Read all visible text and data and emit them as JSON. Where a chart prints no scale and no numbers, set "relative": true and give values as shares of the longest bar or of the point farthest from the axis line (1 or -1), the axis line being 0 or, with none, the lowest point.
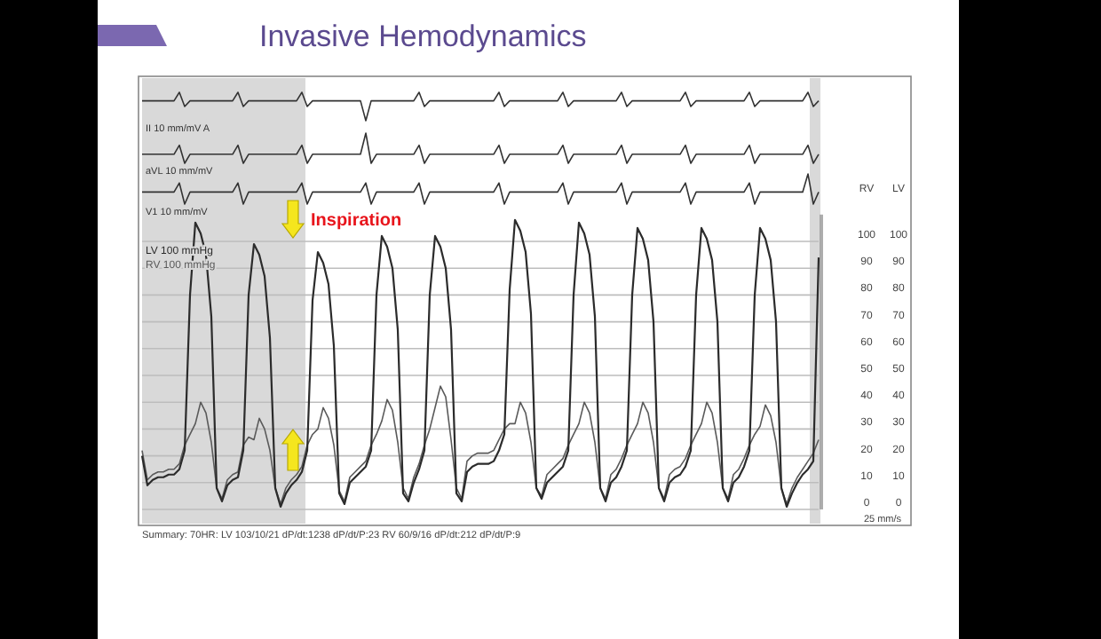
{
  "chart_data": [
    {
      "type": "line",
      "title": "Invasive Hemodynamics",
      "relative": true,
      "categories": [
        null,
        null,
        null,
        null,
        null,
        null,
        null,
        null,
        null,
        null,
        null,
        null,
        null,
        null,
        null,
        null,
        null,
        null,
        null,
        null,
        null,
        null,
        null,
        null,
        null,
        null,
        null,
        null,
        null,
        null,
        null,
        null,
        null,
        null,
        null,
        null,
        null,
        null,
        null,
        null,
        null,
        null,
        null,
        null,
        null,
        null,
        null,
        null,
        null,
        null,
        null,
        null,
        null,
        null,
        null,
        null,
        null,
        null,
        null,
        null,
        null,
        null,
        null,
        null,
        null,
        null,
        null,
        null,
        null,
        null,
        null,
        null,
        null,
        null,
        null,
        null,
        null,
        null,
        null,
        null,
        null,
        null,
        null,
        null,
        null,
        null,
        null,
        null,
        null,
        null,
        null,
        null,
        null,
        null,
        null,
        null,
        null,
        null,
        null,
        null,
        null,
        null,
        null,
        null,
        null,
        null,
        null,
        null,
        null,
        null,
        null,
        null,
        null,
        null,
        null,
        null,
        null,
        null,
        null,
        null,
        null,
        null,
        null,
        null,
        null,
        null,
        null,
        null
      ],
      "series": [
        {
          "name": "II 10 mm/mV A",
          "color": "#333333",
          "values": [
            0.7,
            0.7,
            0.7,
            0.7,
            0.7,
            0.7,
            0.7,
            1,
            0.5,
            0.7,
            0.7,
            0.7,
            0.7,
            0.7,
            0.7,
            0.7,
            0.7,
            0.7,
            1,
            0.5,
            0.7,
            0.7,
            0.7,
            0.7,
            0.7,
            0.7,
            0.7,
            0.7,
            0.7,
            0.7,
            1,
            0.5,
            0.7,
            0.7,
            0.7,
            0.7,
            0.7,
            0.7,
            0.7,
            0.7,
            0.7,
            0.7,
            0,
            0.7,
            0.7,
            0.7,
            0.7,
            0.7,
            0.7,
            0.7,
            0.7,
            0.7,
            1,
            0.5,
            0.7,
            0.7,
            0.7,
            0.7,
            0.7,
            0.7,
            0.7,
            0.7,
            0.7,
            0.7,
            0.7,
            0.7,
            0.7,
            1,
            0.5,
            0.7,
            0.7,
            0.7,
            0.7,
            0.7,
            0.7,
            0.7,
            0.7,
            0.7,
            0.7,
            1,
            0.5,
            0.7,
            0.7,
            0.7,
            0.7,
            0.7,
            0.7,
            0.7,
            0.7,
            0.7,
            1,
            0.5,
            0.7,
            0.7,
            0.7,
            0.7,
            0.7,
            0.7,
            0.7,
            0.7,
            0.7,
            0.7,
            1,
            0.5,
            0.7,
            0.7,
            0.7,
            0.7,
            0.7,
            0.7,
            0.7,
            0.7,
            0.7,
            0.7,
            1,
            0.5,
            0.7,
            0.7,
            0.7,
            0.7,
            0.7,
            0.7,
            0.7,
            0.7,
            0.7,
            1,
            0.5,
            0.7
          ]
        }
      ]
    },
    {
      "type": "line",
      "relative": true,
      "categories": [
        null,
        null,
        null,
        null,
        null,
        null,
        null,
        null,
        null,
        null,
        null,
        null,
        null,
        null,
        null,
        null,
        null,
        null,
        null,
        null,
        null,
        null,
        null,
        null,
        null,
        null,
        null,
        null,
        null,
        null,
        null,
        null,
        null,
        null,
        null,
        null,
        null,
        null,
        null,
        null,
        null,
        null,
        null,
        null,
        null,
        null,
        null,
        null,
        null,
        null,
        null,
        null,
        null,
        null,
        null,
        null,
        null,
        null,
        null,
        null,
        null,
        null,
        null,
        null,
        null,
        null,
        null,
        null,
        null,
        null,
        null,
        null,
        null,
        null,
        null,
        null,
        null,
        null,
        null,
        null,
        null,
        null,
        null,
        null,
        null,
        null,
        null,
        null,
        null,
        null,
        null,
        null,
        null,
        null,
        null,
        null,
        null,
        null,
        null,
        null,
        null,
        null,
        null,
        null,
        null,
        null,
        null,
        null,
        null,
        null,
        null,
        null,
        null,
        null,
        null,
        null,
        null,
        null,
        null,
        null,
        null,
        null,
        null,
        null,
        null,
        null,
        null,
        null
      ],
      "series": [
        {
          "name": "aVL 10 mm/mV",
          "color": "#333333",
          "values": [
            0.3,
            0.3,
            0.3,
            0.3,
            0.3,
            0.3,
            0.3,
            0.6,
            0,
            0.3,
            0.3,
            0.3,
            0.3,
            0.3,
            0.3,
            0.3,
            0.3,
            0.3,
            0.6,
            0,
            0.3,
            0.3,
            0.3,
            0.3,
            0.3,
            0.3,
            0.3,
            0.3,
            0.3,
            0.3,
            0.6,
            0,
            0.3,
            0.3,
            0.3,
            0.3,
            0.3,
            0.3,
            0.3,
            0.3,
            0.3,
            0.3,
            1,
            0,
            0.3,
            0.3,
            0.3,
            0.3,
            0.3,
            0.3,
            0.3,
            0.3,
            0.6,
            0,
            0.3,
            0.3,
            0.3,
            0.3,
            0.3,
            0.3,
            0.3,
            0.3,
            0.3,
            0.3,
            0.3,
            0.3,
            0.3,
            0.6,
            0,
            0.3,
            0.3,
            0.3,
            0.3,
            0.3,
            0.3,
            0.3,
            0.3,
            0.3,
            0.3,
            0.6,
            0,
            0.3,
            0.3,
            0.3,
            0.3,
            0.3,
            0.3,
            0.3,
            0.3,
            0.3,
            0.6,
            0,
            0.3,
            0.3,
            0.3,
            0.3,
            0.3,
            0.3,
            0.3,
            0.3,
            0.3,
            0.3,
            0.6,
            0,
            0.3,
            0.3,
            0.3,
            0.3,
            0.3,
            0.3,
            0.3,
            0.3,
            0.3,
            0.3,
            0.6,
            0,
            0.3,
            0.3,
            0.3,
            0.3,
            0.3,
            0.3,
            0.3,
            0.3,
            0.3,
            0.6,
            0,
            0.3
          ]
        }
      ]
    },
    {
      "type": "line",
      "relative": true,
      "categories": [
        null,
        null,
        null,
        null,
        null,
        null,
        null,
        null,
        null,
        null,
        null,
        null,
        null,
        null,
        null,
        null,
        null,
        null,
        null,
        null,
        null,
        null,
        null,
        null,
        null,
        null,
        null,
        null,
        null,
        null,
        null,
        null,
        null,
        null,
        null,
        null,
        null,
        null,
        null,
        null,
        null,
        null,
        null,
        null,
        null,
        null,
        null,
        null,
        null,
        null,
        null,
        null,
        null,
        null,
        null,
        null,
        null,
        null,
        null,
        null,
        null,
        null,
        null,
        null,
        null,
        null,
        null,
        null,
        null,
        null,
        null,
        null,
        null,
        null,
        null,
        null,
        null,
        null,
        null,
        null,
        null,
        null,
        null,
        null,
        null,
        null,
        null,
        null,
        null,
        null,
        null,
        null,
        null,
        null,
        null,
        null,
        null,
        null,
        null,
        null,
        null,
        null,
        null,
        null,
        null,
        null,
        null,
        null,
        null,
        null,
        null,
        null,
        null,
        null,
        null,
        null,
        null,
        null,
        null,
        null,
        null,
        null,
        null,
        null,
        null,
        null,
        null,
        null
      ],
      "series": [
        {
          "name": "V1 10 mm/mV",
          "color": "#333333",
          "values": [
            0.4,
            0.4,
            0.4,
            0.4,
            0.4,
            0.4,
            0.4,
            0.7,
            0,
            0.4,
            0.4,
            0.4,
            0.4,
            0.4,
            0.4,
            0.4,
            0.4,
            0.4,
            0.7,
            0,
            0.4,
            0.4,
            0.4,
            0.4,
            0.4,
            0.4,
            0.4,
            0.4,
            0.4,
            0.4,
            0.7,
            0,
            0.4,
            0.4,
            0.4,
            0.4,
            0.4,
            0.4,
            0.4,
            0.4,
            0.4,
            0.4,
            0.7,
            0,
            0.4,
            0.4,
            0.4,
            0.4,
            0.4,
            0.4,
            0.4,
            0.4,
            0.7,
            0,
            0.4,
            0.4,
            0.4,
            0.4,
            0.4,
            0.4,
            0.4,
            0.4,
            0.4,
            0.4,
            0.4,
            0.4,
            0.4,
            0.7,
            0,
            0.4,
            0.4,
            0.4,
            0.4,
            0.4,
            0.4,
            0.4,
            0.4,
            0.4,
            0.4,
            0.7,
            0,
            0.4,
            0.4,
            0.4,
            0.4,
            0.4,
            0.4,
            0.4,
            0.4,
            0.4,
            0.7,
            0,
            0.4,
            0.4,
            0.4,
            0.4,
            0.4,
            0.4,
            0.4,
            0.4,
            0.4,
            0.4,
            0.7,
            0,
            0.4,
            0.4,
            0.4,
            0.4,
            0.4,
            0.4,
            0.4,
            0.4,
            0.4,
            0.4,
            0.7,
            0,
            0.4,
            0.4,
            0.4,
            0.4,
            0.4,
            0.4,
            0.4,
            0.4,
            0.4,
            1,
            0,
            0.4
          ]
        }
      ]
    },
    {
      "type": "line",
      "ylabel": "RV",
      "y2label": "LV",
      "grid": "y",
      "ylim": [
        0,
        110
      ],
      "yticks": [
        0,
        10,
        20,
        30,
        40,
        50,
        60,
        70,
        80,
        90,
        100
      ],
      "y2lim": [
        0,
        110
      ],
      "y2ticks": [
        0,
        10,
        20,
        30,
        40,
        50,
        60,
        70,
        80,
        90,
        100
      ],
      "categories": [
        null,
        null,
        null,
        null,
        null,
        null,
        null,
        null,
        null,
        null,
        null,
        null,
        null,
        null,
        null,
        null,
        null,
        null,
        null,
        null,
        null,
        null,
        null,
        null,
        null,
        null,
        null,
        null,
        null,
        null,
        null,
        null,
        null,
        null,
        null,
        null,
        null,
        null,
        null,
        null,
        null,
        null,
        null,
        null,
        null,
        null,
        null,
        null,
        null,
        null,
        null,
        null,
        null,
        null,
        null,
        null,
        null,
        null,
        null,
        null,
        null,
        null,
        null,
        null,
        null,
        null,
        null,
        null,
        null,
        null,
        null,
        null,
        null,
        null,
        null,
        null,
        null,
        null,
        null,
        null,
        null,
        null,
        null,
        null,
        null,
        null,
        null,
        null,
        null,
        null,
        null,
        null,
        null,
        null,
        null,
        null,
        null,
        null,
        null,
        null,
        null,
        null,
        null,
        null,
        null,
        null,
        null,
        null,
        null,
        null,
        null,
        null,
        null,
        null,
        null,
        null,
        null,
        null,
        null,
        null,
        null,
        null,
        null,
        null,
        null,
        null,
        null,
        null
      ],
      "series": [
        {
          "name": "LV 100 mmHg",
          "color": "#2b2b2b",
          "axis": "y2",
          "values": [
            20,
            9,
            11,
            12,
            12,
            13,
            13,
            15,
            22,
            80,
            107,
            103,
            95,
            72,
            8,
            3,
            9,
            11,
            12,
            22,
            80,
            99,
            95,
            87,
            64,
            8,
            1,
            6,
            9,
            11,
            14,
            22,
            78,
            96,
            92,
            84,
            61,
            6,
            2,
            10,
            12,
            14,
            16,
            22,
            80,
            102,
            98,
            90,
            67,
            6,
            3,
            10,
            15,
            22,
            80,
            102,
            98,
            90,
            67,
            6,
            3,
            14,
            16,
            17,
            17,
            17,
            18,
            22,
            28,
            82,
            108,
            104,
            96,
            73,
            8,
            4,
            10,
            12,
            14,
            16,
            22,
            80,
            107,
            103,
            95,
            72,
            8,
            3,
            10,
            12,
            16,
            22,
            80,
            105,
            101,
            93,
            70,
            8,
            3,
            10,
            12,
            13,
            16,
            22,
            80,
            105,
            101,
            93,
            70,
            8,
            3,
            10,
            12,
            16,
            22,
            80,
            105,
            101,
            93,
            70,
            8,
            1,
            6,
            10,
            13,
            15,
            18,
            94
          ]
        },
        {
          "name": "RV 100 mmHg",
          "color": "#5a5a5a",
          "values": [
            22,
            11,
            13,
            14,
            14,
            15,
            15,
            17,
            24,
            28,
            32,
            40,
            36,
            25,
            8,
            4,
            11,
            13,
            14,
            24,
            27,
            26,
            34,
            30,
            22,
            8,
            2,
            8,
            11,
            13,
            16,
            24,
            28,
            30,
            38,
            34,
            24,
            7,
            3,
            12,
            14,
            16,
            18,
            24,
            28,
            33,
            41,
            37,
            25,
            8,
            4,
            12,
            17,
            24,
            30,
            38,
            46,
            42,
            26,
            8,
            4,
            18,
            20,
            21,
            21,
            21,
            22,
            26,
            30,
            32,
            32,
            40,
            36,
            25,
            8,
            5,
            13,
            15,
            17,
            19,
            24,
            28,
            32,
            40,
            36,
            25,
            8,
            4,
            13,
            15,
            19,
            24,
            28,
            32,
            40,
            36,
            25,
            8,
            4,
            13,
            15,
            16,
            19,
            24,
            28,
            32,
            40,
            36,
            25,
            8,
            4,
            13,
            15,
            19,
            24,
            28,
            31,
            39,
            35,
            25,
            8,
            2,
            8,
            12,
            15,
            18,
            21,
            26
          ]
        }
      ],
      "annotations": [
        "Inspiration",
        "25 mm/s",
        "Summary: 70HR: LV 103/10/21 dP/dt:1238 dP/dt/P:23 RV 60/9/16 dP/dt:212 dP/dt/P:9"
      ]
    }
  ]
}
